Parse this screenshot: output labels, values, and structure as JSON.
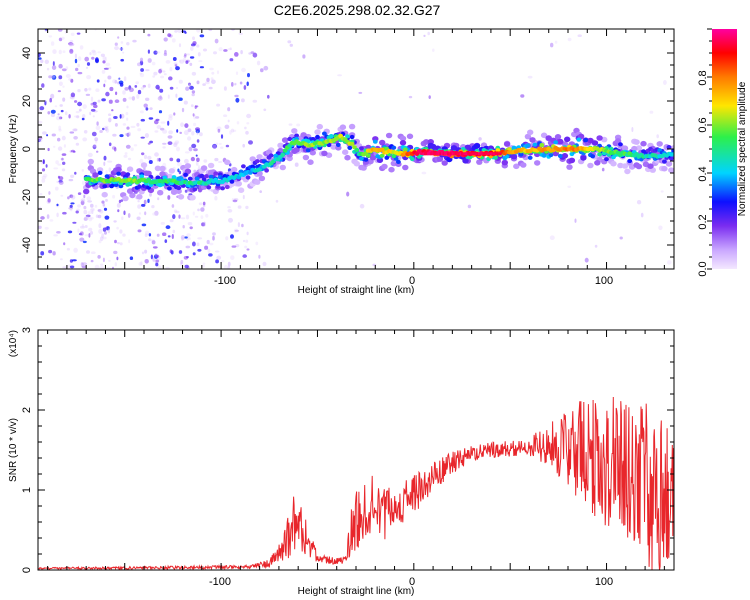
{
  "title": "C2E6.2025.298.02.32.G27",
  "chart_data": [
    {
      "type": "heatmap",
      "xlabel": "Height of straight line (km)",
      "ylabel": "Frequency (Hz)",
      "xlim": [
        -195,
        135
      ],
      "ylim": [
        -50,
        50
      ],
      "xticks": [
        -100,
        0,
        100
      ],
      "yticks": [
        -40,
        -20,
        0,
        20,
        40
      ],
      "colorbar": {
        "label": "Normalized spectral amplitude",
        "range": [
          0,
          1
        ],
        "ticks": [
          "0.0",
          "0.2",
          "0.4",
          "0.6",
          "0.8"
        ],
        "colors": [
          "#f4e8ff",
          "#c9a6ff",
          "#7a2cf0",
          "#0d10ff",
          "#00d4ff",
          "#2df04a",
          "#ffe600",
          "#ff7a00",
          "#ff0000",
          "#ff00a0"
        ]
      },
      "ridge": {
        "x": [
          -170,
          -150,
          -130,
          -110,
          -98,
          -90,
          -80,
          -70,
          -63,
          -55,
          -45,
          -38,
          -32,
          -28,
          -22,
          -15,
          -8,
          -2,
          5,
          20,
          40,
          50,
          60,
          70,
          80,
          90,
          100,
          110,
          120,
          135
        ],
        "freq": [
          -13,
          -13,
          -13.5,
          -14,
          -13,
          -11,
          -8,
          -4,
          3,
          2,
          3,
          5,
          2,
          -3,
          0,
          -1,
          -2,
          -2,
          -1,
          -2,
          -2,
          -1,
          -0.5,
          0,
          0,
          0.5,
          -1,
          -2,
          -3,
          -2
        ],
        "amplitude": [
          0.55,
          0.6,
          0.55,
          0.5,
          0.45,
          0.45,
          0.45,
          0.5,
          0.55,
          0.6,
          0.6,
          0.65,
          0.6,
          0.5,
          0.75,
          0.7,
          0.65,
          0.85,
          0.95,
          0.95,
          0.9,
          0.75,
          0.7,
          0.75,
          0.8,
          0.7,
          0.6,
          0.55,
          0.5,
          0.45
        ]
      }
    },
    {
      "type": "line",
      "xlabel": "Height of straight line (km)",
      "ylabel": "SNR (10 * v/v)",
      "y_multiplier": "(x10⁴)",
      "xlim": [
        -195,
        135
      ],
      "ylim": [
        0,
        3
      ],
      "xticks": [
        -100,
        0,
        100
      ],
      "yticks": [
        0,
        1,
        2,
        3
      ],
      "color": "#e8262b",
      "envelope": {
        "x": [
          -195,
          -120,
          -85,
          -75,
          -68,
          -62,
          -55,
          -50,
          -45,
          -35,
          -33,
          -25,
          -15,
          -10,
          0,
          10,
          20,
          30,
          40,
          50,
          60,
          70,
          80,
          90,
          100,
          110,
          120,
          125,
          130,
          135
        ],
        "mean": [
          0.02,
          0.03,
          0.04,
          0.08,
          0.25,
          0.6,
          0.35,
          0.15,
          0.12,
          0.12,
          0.45,
          0.9,
          0.7,
          0.75,
          0.95,
          1.15,
          1.35,
          1.45,
          1.5,
          1.52,
          1.55,
          1.57,
          1.55,
          1.45,
          1.35,
          1.25,
          1.1,
          1.05,
          1.0,
          1.0
        ],
        "spread": [
          0.01,
          0.02,
          0.02,
          0.05,
          0.15,
          0.4,
          0.25,
          0.05,
          0.05,
          0.05,
          0.3,
          0.5,
          0.35,
          0.25,
          0.25,
          0.2,
          0.15,
          0.1,
          0.1,
          0.1,
          0.12,
          0.3,
          0.55,
          0.75,
          0.85,
          0.9,
          1.0,
          1.2,
          1.1,
          0.8
        ]
      }
    }
  ]
}
